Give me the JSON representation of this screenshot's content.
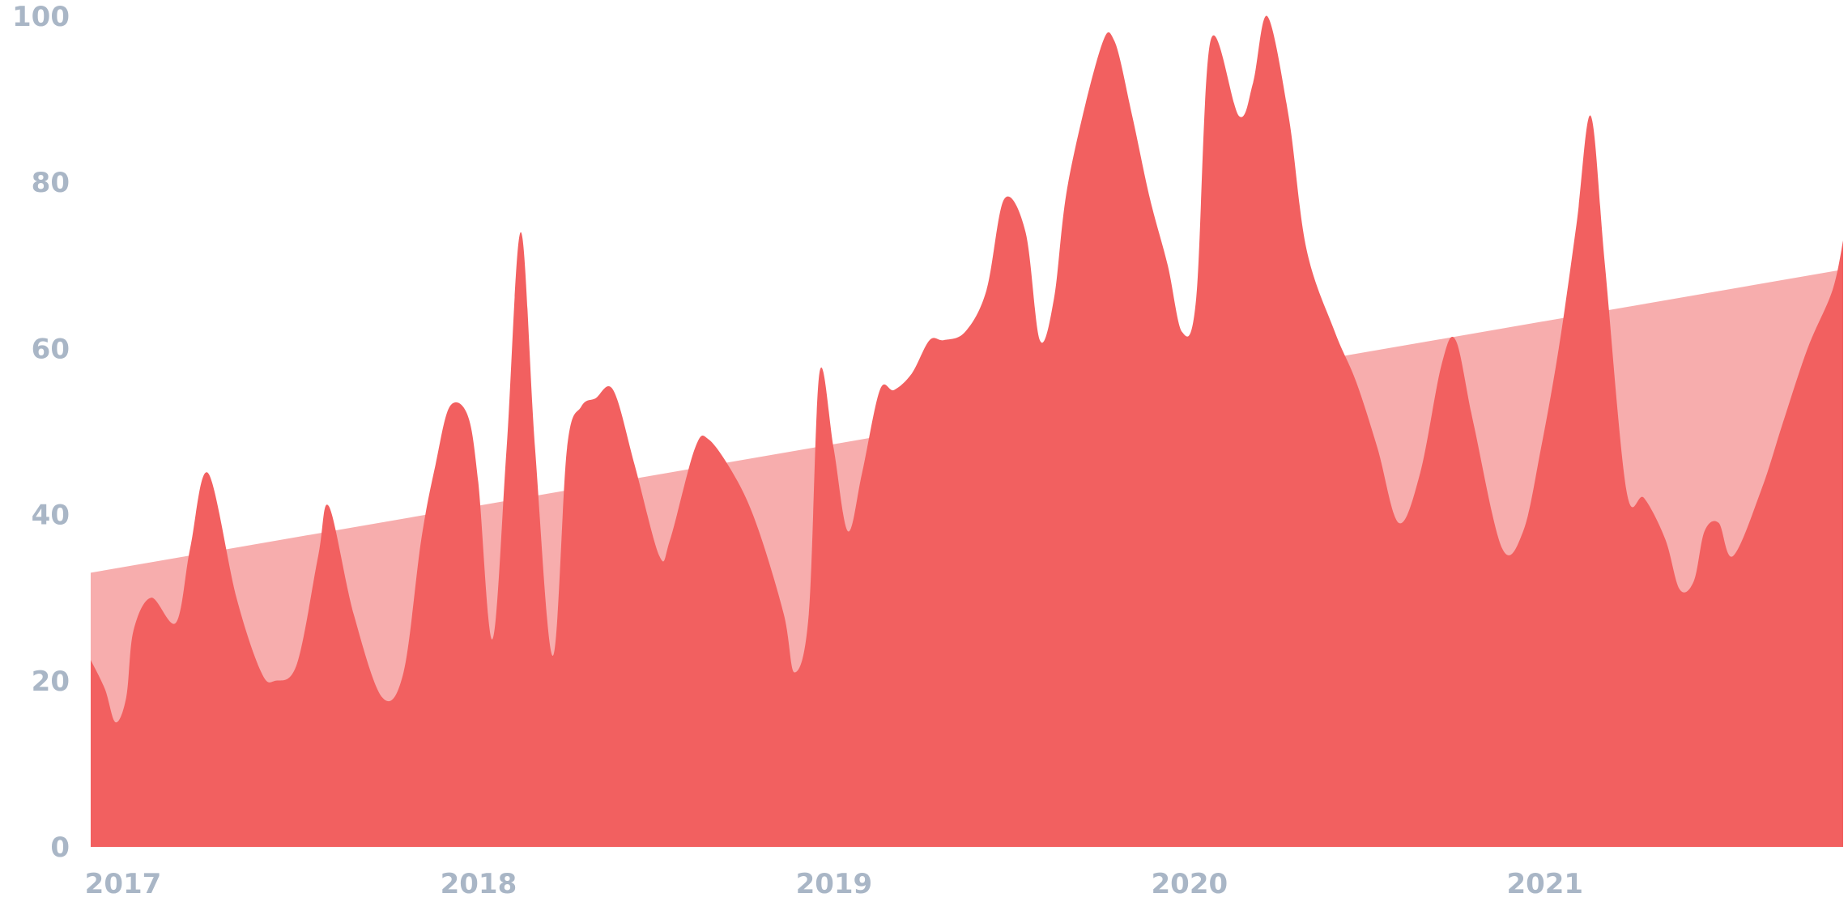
{
  "chart_data": {
    "type": "area",
    "title": "",
    "xlabel": "",
    "ylabel": "",
    "xlim": [
      2017.0,
      2021.93
    ],
    "ylim": [
      0,
      100
    ],
    "y_ticks": [
      "0",
      "20",
      "40",
      "60",
      "80",
      "100"
    ],
    "x_ticks": [
      "2017",
      "2018",
      "2019",
      "2020",
      "2021"
    ],
    "grid": false,
    "legend": "none",
    "colors": {
      "trend": "#f7adad",
      "values": "#f26060",
      "tick_label": "#a9b6c6"
    },
    "series": [
      {
        "points": [
          [
            2017.0,
            33.0
          ],
          [
            2021.93,
            69.5
          ]
        ]
      },
      {
        "points": [
          [
            2017.0,
            22.5
          ],
          [
            2017.04,
            19.0
          ],
          [
            2017.07,
            15.0
          ],
          [
            2017.1,
            18.0
          ],
          [
            2017.12,
            26.0
          ],
          [
            2017.17,
            30.0
          ],
          [
            2017.24,
            27.0
          ],
          [
            2017.28,
            36.0
          ],
          [
            2017.33,
            45.0
          ],
          [
            2017.41,
            30.0
          ],
          [
            2017.48,
            21.0
          ],
          [
            2017.52,
            20.0
          ],
          [
            2017.58,
            22.0
          ],
          [
            2017.64,
            35.0
          ],
          [
            2017.67,
            41.0
          ],
          [
            2017.74,
            28.0
          ],
          [
            2017.82,
            18.0
          ],
          [
            2017.88,
            21.0
          ],
          [
            2017.93,
            37.0
          ],
          [
            2017.97,
            46.0
          ],
          [
            2018.01,
            53.0
          ],
          [
            2018.06,
            52.0
          ],
          [
            2018.09,
            44.0
          ],
          [
            2018.13,
            25.0
          ],
          [
            2018.17,
            48.0
          ],
          [
            2018.21,
            74.0
          ],
          [
            2018.25,
            48.0
          ],
          [
            2018.3,
            23.0
          ],
          [
            2018.34,
            48.0
          ],
          [
            2018.38,
            53.0
          ],
          [
            2018.42,
            54.0
          ],
          [
            2018.47,
            55.0
          ],
          [
            2018.53,
            46.0
          ],
          [
            2018.6,
            35.0
          ],
          [
            2018.63,
            37.0
          ],
          [
            2018.7,
            48.0
          ],
          [
            2018.74,
            49.0
          ],
          [
            2018.82,
            44.0
          ],
          [
            2018.88,
            38.0
          ],
          [
            2018.95,
            28.0
          ],
          [
            2018.98,
            21.0
          ],
          [
            2019.02,
            28.0
          ],
          [
            2019.05,
            57.0
          ],
          [
            2019.09,
            48.0
          ],
          [
            2019.13,
            38.0
          ],
          [
            2019.17,
            45.0
          ],
          [
            2019.22,
            55.0
          ],
          [
            2019.26,
            55.0
          ],
          [
            2019.31,
            57.0
          ],
          [
            2019.36,
            61.0
          ],
          [
            2019.4,
            61.0
          ],
          [
            2019.46,
            62.0
          ],
          [
            2019.52,
            67.0
          ],
          [
            2019.57,
            78.0
          ],
          [
            2019.63,
            74.0
          ],
          [
            2019.67,
            61.0
          ],
          [
            2019.71,
            66.0
          ],
          [
            2019.75,
            80.0
          ],
          [
            2019.84,
            96.0
          ],
          [
            2019.88,
            97.0
          ],
          [
            2019.93,
            88.0
          ],
          [
            2019.98,
            78.0
          ],
          [
            2020.03,
            70.0
          ],
          [
            2020.07,
            62.0
          ],
          [
            2020.11,
            66.0
          ],
          [
            2020.15,
            97.0
          ],
          [
            2020.23,
            88.0
          ],
          [
            2020.27,
            92.0
          ],
          [
            2020.31,
            100.0
          ],
          [
            2020.37,
            88.0
          ],
          [
            2020.42,
            72.0
          ],
          [
            2020.5,
            62.0
          ],
          [
            2020.56,
            56.0
          ],
          [
            2020.62,
            48.0
          ],
          [
            2020.68,
            39.0
          ],
          [
            2020.74,
            45.0
          ],
          [
            2020.8,
            58.0
          ],
          [
            2020.84,
            61.0
          ],
          [
            2020.89,
            51.0
          ],
          [
            2020.97,
            36.0
          ],
          [
            2021.03,
            38.0
          ],
          [
            2021.08,
            48.0
          ],
          [
            2021.13,
            60.0
          ],
          [
            2021.18,
            75.0
          ],
          [
            2021.22,
            88.0
          ],
          [
            2021.26,
            70.0
          ],
          [
            2021.32,
            43.0
          ],
          [
            2021.37,
            42.0
          ],
          [
            2021.43,
            37.0
          ],
          [
            2021.47,
            31.0
          ],
          [
            2021.51,
            32.0
          ],
          [
            2021.54,
            38.0
          ],
          [
            2021.58,
            39.0
          ],
          [
            2021.62,
            35.0
          ],
          [
            2021.7,
            43.0
          ],
          [
            2021.76,
            51.0
          ],
          [
            2021.83,
            60.0
          ],
          [
            2021.9,
            67.0
          ],
          [
            2021.93,
            73.0
          ]
        ]
      }
    ]
  }
}
